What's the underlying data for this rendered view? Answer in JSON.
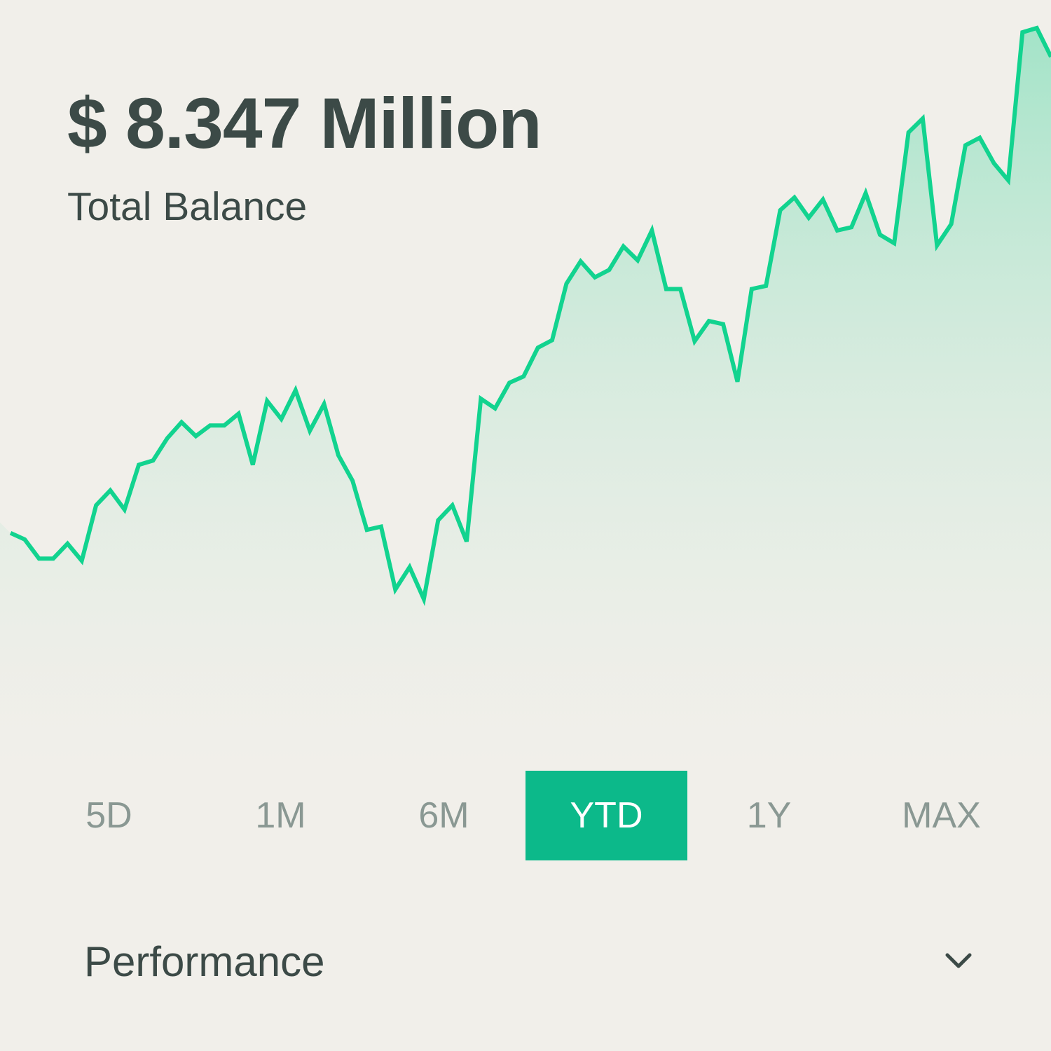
{
  "balance": {
    "amount": "$ 8.347 Million",
    "label": "Total Balance"
  },
  "range_tabs": [
    {
      "label": "5D",
      "active": false
    },
    {
      "label": "1M",
      "active": false
    },
    {
      "label": "6M",
      "active": false
    },
    {
      "label": "YTD",
      "active": true
    },
    {
      "label": "1Y",
      "active": false
    },
    {
      "label": "MAX",
      "active": false
    }
  ],
  "performance": {
    "label": "Performance",
    "icon": "chevron-down-icon"
  },
  "colors": {
    "background": "#f1efea",
    "line": "#12d38f",
    "accent": "#0cb98a",
    "text": "#3c4a47",
    "muted_text": "#8a9893"
  },
  "chart_data": {
    "type": "area",
    "values": [
      42.0,
      41.4,
      39.6,
      39.6,
      41.0,
      39.4,
      44.6,
      46.0,
      44.2,
      48.4,
      48.8,
      50.9,
      52.4,
      51.1,
      52.1,
      52.1,
      53.2,
      48.4,
      54.4,
      52.7,
      55.4,
      51.6,
      54.1,
      49.3,
      46.9,
      42.3,
      42.6,
      36.7,
      38.8,
      35.8,
      43.2,
      44.6,
      41.2,
      54.6,
      53.7,
      56.1,
      56.7,
      59.4,
      60.1,
      65.4,
      67.5,
      66.0,
      66.7,
      68.9,
      67.6,
      70.4,
      64.9,
      64.9,
      60.0,
      61.9,
      61.6,
      56.2,
      64.9,
      65.2,
      72.3,
      73.5,
      71.6,
      73.3,
      70.4,
      70.7,
      73.9,
      70.0,
      69.2,
      79.6,
      80.9,
      69.0,
      71.0,
      78.4,
      79.1,
      76.7,
      75.1,
      89.0,
      89.4,
      86.7
    ]
  }
}
